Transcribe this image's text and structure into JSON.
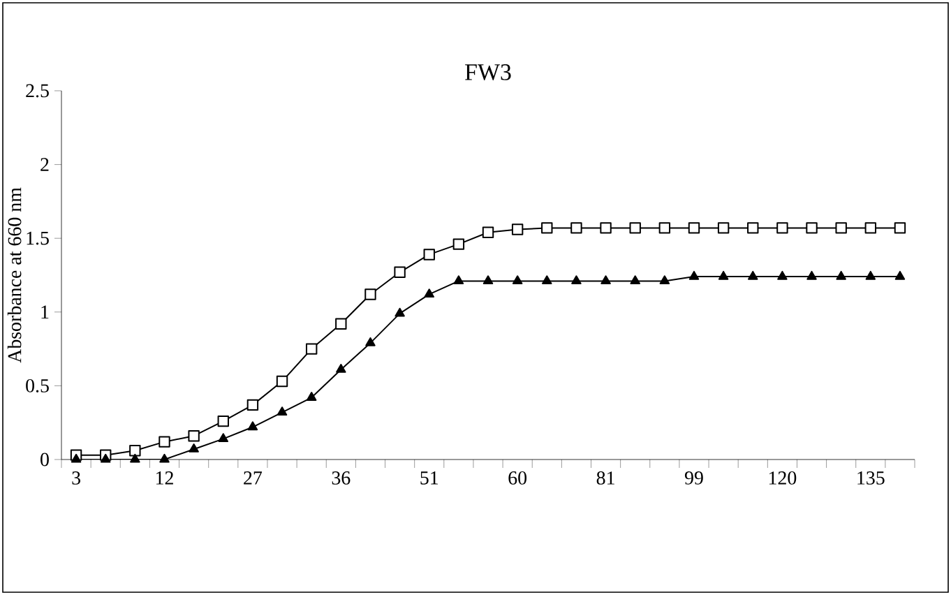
{
  "chart_data": {
    "type": "line",
    "title": "FW3",
    "ylabel": "Absorbance at 660 nm",
    "categories": [
      "3",
      null,
      null,
      "12",
      null,
      null,
      "27",
      null,
      null,
      "36",
      null,
      null,
      "51",
      null,
      null,
      "60",
      null,
      null,
      "81",
      null,
      null,
      "99",
      null,
      null,
      "120",
      null,
      null,
      "135",
      null
    ],
    "series": [
      {
        "color": "#000000",
        "marker": "square",
        "values": [
          0.03,
          0.03,
          0.06,
          0.12,
          0.16,
          0.26,
          0.37,
          0.53,
          0.75,
          0.92,
          1.12,
          1.27,
          1.39,
          1.46,
          1.54,
          1.56,
          1.57,
          1.57,
          1.57,
          1.57,
          1.57,
          1.57,
          1.57,
          1.57,
          1.57,
          1.57,
          1.57,
          1.57,
          1.57
        ]
      },
      {
        "color": "#000000",
        "marker": "triangle",
        "values": [
          0,
          0,
          0,
          0,
          0.07,
          0.14,
          0.22,
          0.32,
          0.42,
          0.61,
          0.79,
          0.99,
          1.12,
          1.21,
          1.21,
          1.21,
          1.21,
          1.21,
          1.21,
          1.21,
          1.21,
          1.24,
          1.24,
          1.24,
          1.24,
          1.24,
          1.24,
          1.24,
          1.24
        ]
      }
    ],
    "ylim": [
      0,
      2.5
    ],
    "yticks": [
      0,
      0.5,
      1,
      1.5,
      2,
      2.5
    ]
  }
}
